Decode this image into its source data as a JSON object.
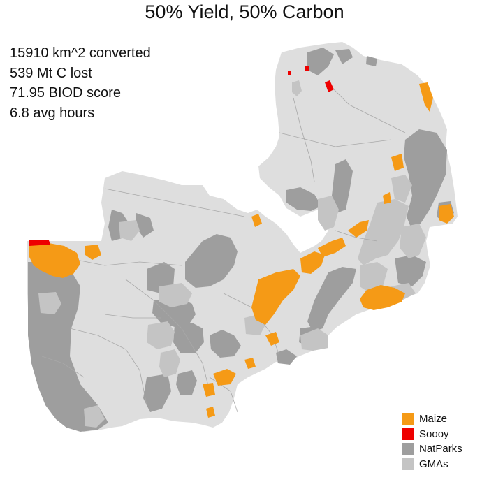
{
  "title": "50% Yield, 50% Carbon",
  "stats": [
    "15910 km^2 converted",
    "539 Mt C lost",
    "71.95 BIOD score",
    "6.8 avg hours"
  ],
  "colors": {
    "country": "#dedede",
    "natparks": "#9e9e9e",
    "gmas": "#c4c4c4",
    "maize": "#f59a16",
    "soooy": "#ee0000",
    "roads": "#a8a8a8",
    "background": "#ffffff"
  },
  "legend": [
    {
      "label": "Maize",
      "color": "#f59a16"
    },
    {
      "label": "Soooy",
      "color": "#ee0000"
    },
    {
      "label": "NatParks",
      "color": "#9e9e9e"
    },
    {
      "label": "GMAs",
      "color": "#c4c4c4"
    }
  ]
}
